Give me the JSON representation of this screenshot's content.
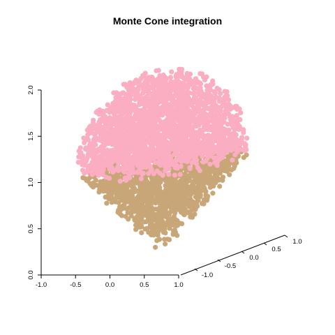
{
  "chart_data": {
    "type": "scatter",
    "title": "Monte Cone integration",
    "projection": "3d-scatter-box",
    "colors": {
      "cone": "#c8a678",
      "scoop": "#fbaec2"
    },
    "axes": {
      "x": {
        "range": [
          -1,
          1
        ],
        "ticks": [
          "-1.0",
          "-0.5",
          "0.0",
          "0.5",
          "1.0"
        ]
      },
      "y": {
        "range": [
          -1,
          1
        ],
        "ticks": [
          "-1.0",
          "-0.5",
          "0.0",
          "0.5",
          "1.0"
        ]
      },
      "z": {
        "range": [
          0,
          2
        ],
        "ticks": [
          "0.0",
          "0.5",
          "1.0",
          "1.5",
          "2.0"
        ]
      }
    },
    "series": [
      {
        "part": "cone",
        "color": "#c8a678",
        "z_range": [
          0,
          1
        ],
        "description_rule": "sqrt(x^2+y^2) <= z"
      },
      {
        "part": "scoop",
        "color": "#fbaec2",
        "z_range": [
          1,
          2
        ],
        "description_rule": "x^2+y^2+(z-1)^2 <= 1"
      }
    ]
  }
}
